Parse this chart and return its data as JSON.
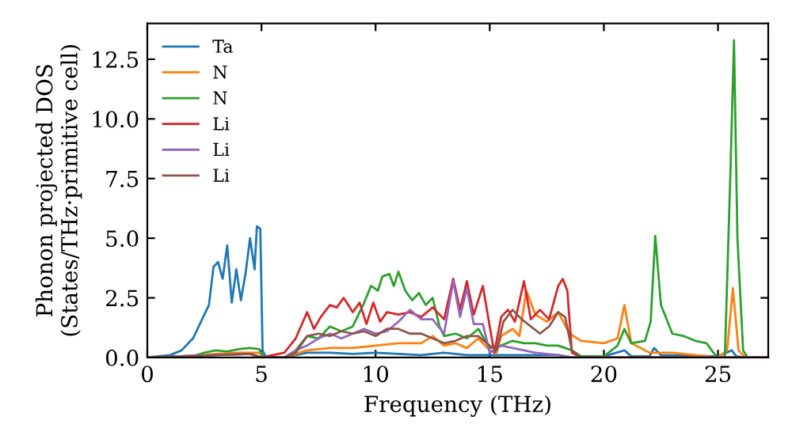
{
  "chart_data": {
    "type": "line",
    "xlabel": "Frequency (THz)",
    "ylabel": "Phonon projected DOS\n(States/THz·primitive cell)",
    "xlim": [
      0,
      27.2
    ],
    "ylim": [
      0,
      14
    ],
    "xticks": [
      0,
      5,
      10,
      15,
      20,
      25
    ],
    "yticks": [
      {
        "value": 0,
        "label": "0.0"
      },
      2.5,
      {
        "value": 5,
        "label": "5.0"
      },
      7.5,
      {
        "value": 10,
        "label": "10.0"
      },
      12.5
    ],
    "grid": false,
    "legend": "top left",
    "marker": "none",
    "line_style": "solid",
    "series": [
      {
        "name": "Ta",
        "color": "#1f77b4",
        "x": [
          0,
          1,
          1.5,
          2,
          2.5,
          2.7,
          2.9,
          3.1,
          3.3,
          3.5,
          3.7,
          3.9,
          4.1,
          4.3,
          4.5,
          4.7,
          4.8,
          4.95,
          5.05,
          5.2,
          6,
          6.5,
          7,
          8,
          9,
          10,
          11,
          12,
          13,
          14,
          15,
          16,
          17,
          18,
          18.6,
          20,
          20.9,
          21.2,
          22,
          22.2,
          22.5,
          25,
          25.6,
          25.8,
          26.2,
          27.2
        ],
        "values": [
          0,
          0.1,
          0.3,
          0.8,
          1.8,
          2.2,
          3.8,
          4.0,
          3.3,
          4.7,
          2.3,
          3.7,
          2.4,
          3.5,
          5.0,
          3.7,
          5.5,
          5.4,
          0.3,
          0,
          0,
          0.1,
          0.2,
          0.2,
          0.15,
          0.2,
          0.15,
          0.1,
          0.2,
          0.1,
          0.1,
          0.1,
          0.1,
          0.1,
          0,
          0.05,
          0.3,
          0.05,
          0.05,
          0.4,
          0.1,
          0.05,
          0.3,
          0.05,
          0,
          0
        ]
      },
      {
        "name": "N",
        "color": "#ff7f0e",
        "x": [
          0,
          1,
          2,
          3,
          4,
          4.9,
          5.1,
          6,
          7,
          8,
          9,
          10,
          11,
          12,
          12.5,
          13,
          13.5,
          14,
          14.5,
          15,
          15.3,
          15.5,
          16,
          16.3,
          16.6,
          17,
          17.5,
          18,
          18.5,
          19,
          20,
          20.6,
          20.9,
          21.2,
          22,
          23,
          24,
          25,
          25.4,
          25.65,
          25.9,
          26.2,
          27.2
        ],
        "values": [
          0,
          0,
          0.05,
          0.15,
          0.2,
          0.2,
          0,
          0,
          0.3,
          0.4,
          0.4,
          0.5,
          0.6,
          0.6,
          0.9,
          0.5,
          0.6,
          0.4,
          0.8,
          0.3,
          0.2,
          0.9,
          1.2,
          0.9,
          2.8,
          1.8,
          1.5,
          1.9,
          1.0,
          0.7,
          0.6,
          0.8,
          2.2,
          0.6,
          0.2,
          0.2,
          0.1,
          0,
          0.3,
          2.9,
          0.3,
          0,
          0
        ]
      },
      {
        "name": "N",
        "color": "#2ca02c",
        "x": [
          0,
          1,
          2,
          2.5,
          3,
          3.5,
          4,
          4.5,
          4.9,
          5.1,
          6,
          6.5,
          7,
          7.5,
          8,
          8.5,
          9,
          9.5,
          9.8,
          10.1,
          10.3,
          10.6,
          10.8,
          11,
          11.3,
          11.6,
          11.9,
          12.2,
          12.5,
          12.8,
          13,
          13.5,
          14,
          14.5,
          15,
          15.5,
          16,
          16.5,
          17,
          17.5,
          18,
          18.6,
          19,
          20,
          20.6,
          20.9,
          21.2,
          21.8,
          22.05,
          22.25,
          22.5,
          23,
          23.5,
          24,
          24.5,
          24.8,
          25,
          25.3,
          25.55,
          25.7,
          25.85,
          26.1,
          26.3,
          27.2
        ],
        "values": [
          0,
          0,
          0.05,
          0.2,
          0.3,
          0.25,
          0.35,
          0.4,
          0.35,
          0,
          0,
          0.3,
          0.9,
          0.8,
          1.3,
          1.1,
          1.3,
          2.3,
          3.0,
          2.8,
          3.4,
          3.5,
          3.0,
          3.6,
          2.8,
          2.4,
          2.7,
          2.2,
          2.5,
          1.3,
          0.9,
          1.0,
          0.8,
          1.2,
          0.4,
          0.5,
          0.7,
          0.6,
          0.6,
          0.5,
          0.5,
          0.3,
          0.05,
          0.05,
          0.5,
          1.2,
          0.6,
          0.7,
          1.5,
          5.1,
          2.2,
          1.0,
          0.9,
          0.7,
          0.6,
          0.2,
          0,
          0,
          8.0,
          13.3,
          5.0,
          0.3,
          0,
          0
        ]
      },
      {
        "name": "Li",
        "color": "#d62728",
        "x": [
          0,
          3,
          4.5,
          5,
          6,
          6.5,
          7,
          7.3,
          7.6,
          8,
          8.3,
          8.6,
          9,
          9.3,
          9.6,
          9.9,
          10.2,
          10.5,
          11,
          11.5,
          12,
          12.5,
          13,
          13.4,
          13.7,
          14,
          14.3,
          14.7,
          15,
          15.2,
          15.5,
          15.8,
          16.1,
          16.5,
          16.8,
          17.2,
          17.6,
          18,
          18.2,
          18.4,
          18.6,
          19,
          27.2
        ],
        "values": [
          0,
          0.1,
          0.15,
          0,
          0.2,
          0.8,
          1.9,
          1.2,
          1.7,
          2.2,
          2.1,
          2.5,
          1.9,
          2.3,
          1.4,
          2.3,
          1.5,
          1.9,
          1.8,
          1.9,
          1.7,
          2.1,
          1.6,
          3.3,
          2.0,
          3.2,
          1.8,
          3.0,
          1.3,
          0.2,
          1.7,
          2.0,
          1.5,
          3.2,
          1.6,
          2.0,
          1.6,
          3.0,
          3.3,
          2.8,
          0.2,
          0,
          0
        ]
      },
      {
        "name": "Li",
        "color": "#9467bd",
        "x": [
          0,
          3,
          4.5,
          5,
          6,
          6.5,
          7,
          7.5,
          8,
          8.5,
          9,
          9.5,
          10,
          10.5,
          11,
          11.5,
          12,
          12.5,
          13,
          13.4,
          13.7,
          14,
          14.3,
          14.7,
          15,
          15.5,
          16,
          17,
          18,
          18.6,
          27.2
        ],
        "values": [
          0,
          0.1,
          0.15,
          0,
          0,
          0.3,
          0.5,
          0.8,
          1.0,
          0.8,
          1.0,
          1.2,
          1.0,
          1.1,
          1.5,
          2.0,
          1.6,
          1.6,
          1.0,
          3.2,
          1.7,
          2.9,
          1.4,
          1.4,
          0.2,
          0.5,
          0.4,
          0.2,
          0.1,
          0,
          0
        ]
      },
      {
        "name": "Li",
        "color": "#8c564b",
        "x": [
          0,
          3,
          4.5,
          5,
          6,
          6.5,
          7,
          7.5,
          8,
          8.5,
          9,
          9.5,
          10,
          10.5,
          11,
          11.5,
          12,
          12.5,
          13,
          13.5,
          14,
          14.5,
          15,
          15.3,
          15.6,
          16,
          16.4,
          16.8,
          17.2,
          17.6,
          18,
          18.3,
          18.6,
          19,
          27.2
        ],
        "values": [
          0,
          0.1,
          0.15,
          0,
          0,
          0.2,
          0.9,
          1.0,
          0.9,
          1.1,
          1.0,
          1.1,
          0.9,
          1.2,
          1.2,
          1.0,
          1.0,
          0.8,
          0.6,
          0.7,
          0.9,
          0.9,
          0.5,
          0.3,
          1.5,
          2.0,
          1.6,
          1.3,
          1.0,
          1.3,
          1.9,
          1.7,
          0.3,
          0,
          0
        ]
      }
    ]
  }
}
